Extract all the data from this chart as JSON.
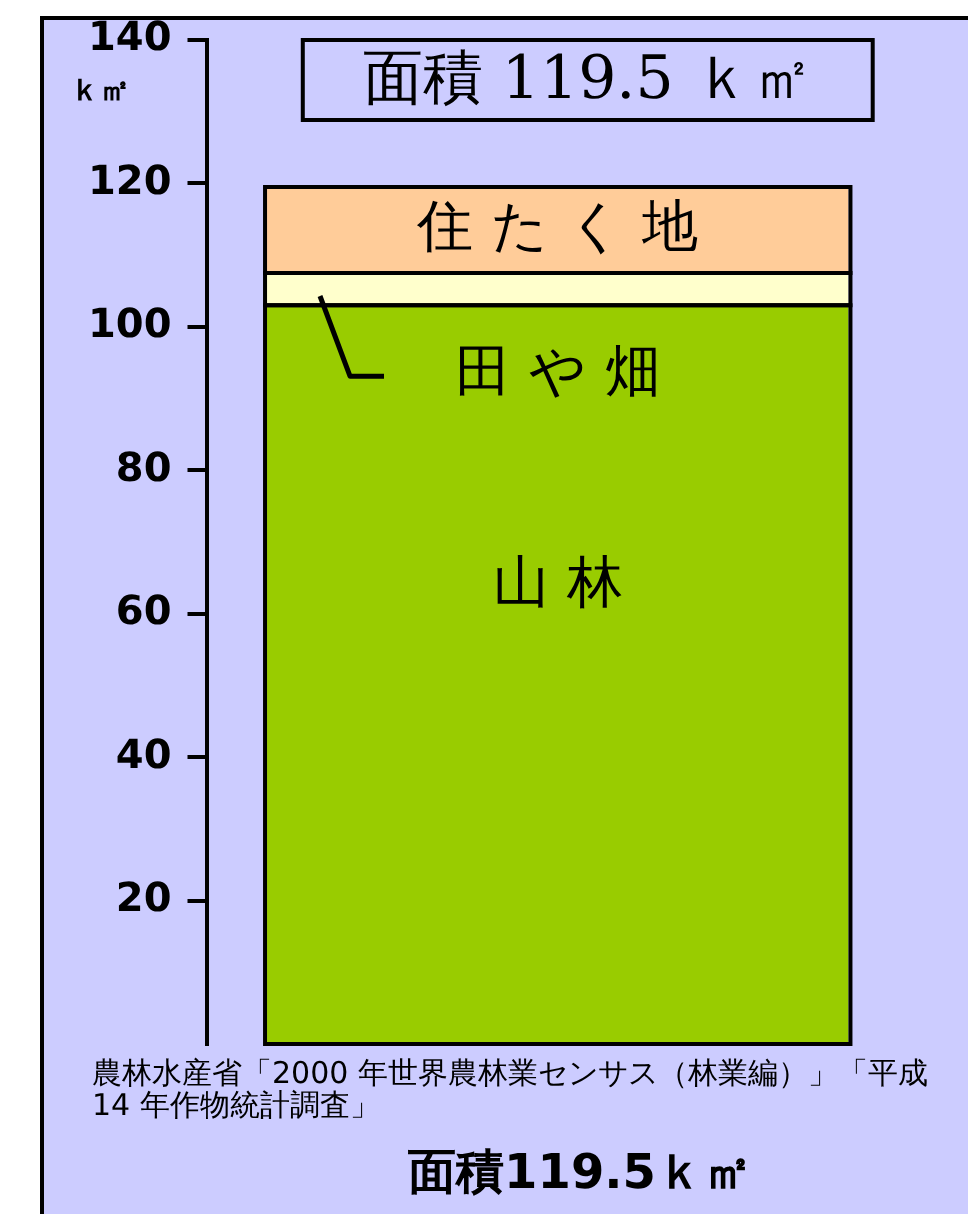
{
  "chart_data": {
    "type": "bar",
    "title": "面積 119.5 ｋ㎡",
    "xlabel": "面積119.5ｋ㎡",
    "ylabel": "ｋ㎡",
    "categories": [
      null
    ],
    "stacked": true,
    "series": [
      {
        "name": "山 林",
        "color": "#99cc00",
        "values": [
          103
        ]
      },
      {
        "name": "田 や 畑",
        "color": "#ffffcc",
        "values": [
          4.5
        ]
      },
      {
        "name": "住 た く 地",
        "color": "#ffcc99",
        "values": [
          12
        ]
      }
    ],
    "ylim": [
      0,
      140
    ],
    "yticks": [
      20,
      40,
      60,
      80,
      100,
      120,
      140
    ],
    "grid": false,
    "legend": false,
    "annotations": [
      "農林水産省「2000 年世界農林業センサス（林業編）」「平成 14 年作物統計調査」"
    ]
  }
}
